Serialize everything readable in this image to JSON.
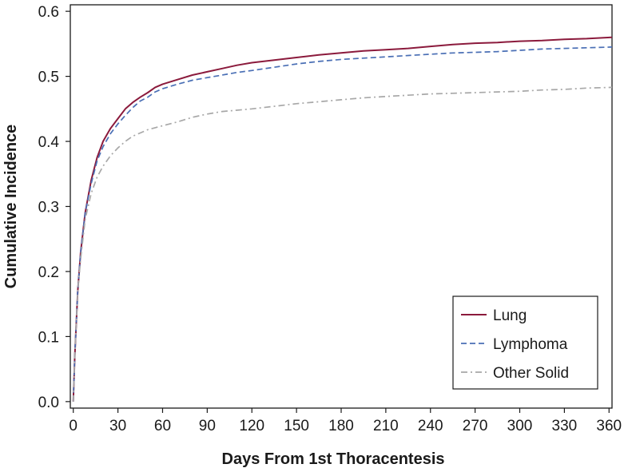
{
  "chart_data": {
    "type": "line",
    "xlabel": "Days From 1st Thoracentesis",
    "ylabel": "Cumulative Incidence",
    "xlim": [
      -2,
      362
    ],
    "ylim": [
      -0.01,
      0.61
    ],
    "xticks": [
      0,
      30,
      60,
      90,
      120,
      150,
      180,
      210,
      240,
      270,
      300,
      330,
      360
    ],
    "yticks": [
      0.0,
      0.1,
      0.2,
      0.3,
      0.4,
      0.5,
      0.6
    ],
    "ytick_labels": [
      "0.0",
      "0.1",
      "0.2",
      "0.3",
      "0.4",
      "0.5",
      "0.6"
    ],
    "grid": false,
    "legend_position": "bottom-right",
    "series": [
      {
        "name": "Lung",
        "color": "#8b1a3c",
        "line_style": "solid",
        "x": [
          0,
          1,
          3,
          5,
          8,
          12,
          16,
          20,
          25,
          30,
          35,
          40,
          45,
          50,
          55,
          60,
          70,
          80,
          90,
          100,
          110,
          120,
          135,
          150,
          165,
          180,
          195,
          210,
          225,
          240,
          255,
          270,
          285,
          300,
          315,
          330,
          345,
          362
        ],
        "y": [
          0.0,
          0.07,
          0.17,
          0.23,
          0.29,
          0.34,
          0.375,
          0.4,
          0.42,
          0.435,
          0.45,
          0.46,
          0.468,
          0.475,
          0.483,
          0.488,
          0.495,
          0.502,
          0.507,
          0.512,
          0.517,
          0.521,
          0.525,
          0.529,
          0.533,
          0.536,
          0.539,
          0.541,
          0.543,
          0.546,
          0.549,
          0.551,
          0.552,
          0.554,
          0.555,
          0.557,
          0.558,
          0.56
        ]
      },
      {
        "name": "Lymphoma",
        "color": "#4a6fb5",
        "line_style": "dashed",
        "x": [
          0,
          1,
          3,
          5,
          8,
          12,
          16,
          20,
          25,
          30,
          35,
          40,
          45,
          50,
          55,
          60,
          70,
          80,
          90,
          100,
          110,
          120,
          135,
          150,
          165,
          180,
          195,
          210,
          225,
          240,
          255,
          270,
          285,
          300,
          315,
          330,
          345,
          362
        ],
        "y": [
          0.0,
          0.07,
          0.17,
          0.23,
          0.29,
          0.335,
          0.37,
          0.392,
          0.412,
          0.427,
          0.44,
          0.452,
          0.462,
          0.468,
          0.476,
          0.481,
          0.488,
          0.494,
          0.498,
          0.502,
          0.506,
          0.509,
          0.514,
          0.519,
          0.523,
          0.526,
          0.528,
          0.53,
          0.532,
          0.534,
          0.536,
          0.537,
          0.538,
          0.54,
          0.542,
          0.543,
          0.544,
          0.545
        ]
      },
      {
        "name": "Other Solid",
        "color": "#a8a8a8",
        "line_style": "dashdot",
        "x": [
          0,
          1,
          3,
          5,
          8,
          12,
          16,
          20,
          25,
          30,
          35,
          40,
          45,
          50,
          55,
          60,
          70,
          80,
          90,
          100,
          110,
          120,
          135,
          150,
          165,
          180,
          195,
          210,
          225,
          240,
          255,
          270,
          285,
          300,
          315,
          330,
          345,
          362
        ],
        "y": [
          0.0,
          0.07,
          0.17,
          0.22,
          0.28,
          0.32,
          0.345,
          0.362,
          0.378,
          0.39,
          0.4,
          0.408,
          0.413,
          0.418,
          0.421,
          0.424,
          0.43,
          0.437,
          0.442,
          0.446,
          0.448,
          0.45,
          0.454,
          0.458,
          0.461,
          0.464,
          0.467,
          0.469,
          0.471,
          0.473,
          0.474,
          0.475,
          0.476,
          0.477,
          0.479,
          0.48,
          0.482,
          0.483
        ]
      }
    ]
  }
}
